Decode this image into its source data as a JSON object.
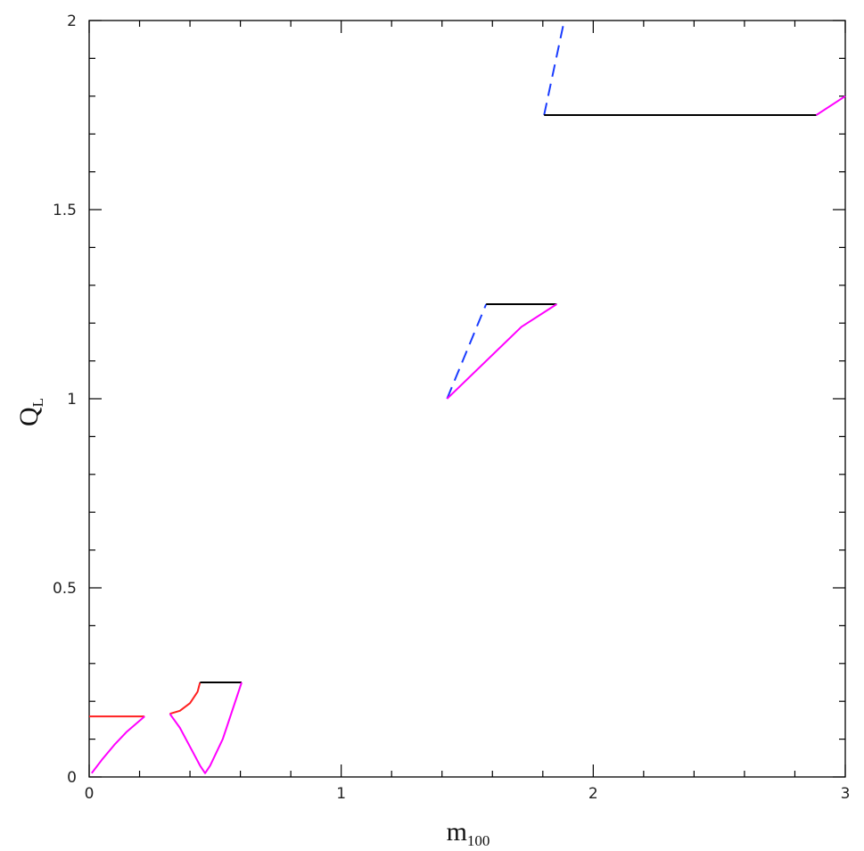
{
  "chart_data": {
    "type": "line",
    "xlabel": {
      "text": "m",
      "subscript": "100"
    },
    "ylabel": {
      "text": "Q",
      "subscript": "L"
    },
    "xlim": [
      0,
      3
    ],
    "ylim": [
      0,
      2
    ],
    "xticks": [
      0,
      1,
      2,
      3
    ],
    "yticks": [
      0,
      0.5,
      1,
      1.5,
      2
    ],
    "xminorticks": [
      0.2,
      0.4,
      0.6,
      0.8,
      1.2,
      1.4,
      1.6,
      1.8,
      2.2,
      2.4,
      2.6,
      2.8
    ],
    "yminorticks": [
      0.1,
      0.2,
      0.3,
      0.4,
      0.6,
      0.7,
      0.8,
      0.9,
      1.1,
      1.2,
      1.3,
      1.4,
      1.6,
      1.7,
      1.8,
      1.9
    ],
    "series": [
      {
        "color": "#ff2020",
        "dashed": false,
        "x": [
          0,
          0.22
        ],
        "values": [
          0.16,
          0.16
        ]
      },
      {
        "color": "#ff00ff",
        "dashed": false,
        "x": [
          0.01,
          0.05,
          0.1,
          0.15,
          0.22
        ],
        "values": [
          0.01,
          0.045,
          0.085,
          0.12,
          0.16
        ]
      },
      {
        "color": "#ff2020",
        "dashed": false,
        "x": [
          0.32,
          0.36,
          0.4,
          0.43,
          0.44
        ],
        "values": [
          0.167,
          0.175,
          0.195,
          0.225,
          0.25
        ]
      },
      {
        "color": "#000000",
        "dashed": false,
        "x": [
          0.44,
          0.605
        ],
        "values": [
          0.25,
          0.25
        ]
      },
      {
        "color": "#ff00ff",
        "dashed": false,
        "x": [
          0.32,
          0.36,
          0.4,
          0.44,
          0.46,
          0.48,
          0.53,
          0.605
        ],
        "values": [
          0.167,
          0.13,
          0.08,
          0.03,
          0.01,
          0.03,
          0.1,
          0.25
        ]
      },
      {
        "color": "#1a3cff",
        "dashed": true,
        "x": [
          1.42,
          1.575
        ],
        "values": [
          1.0,
          1.25
        ]
      },
      {
        "color": "#000000",
        "dashed": false,
        "x": [
          1.575,
          1.855
        ],
        "values": [
          1.25,
          1.25
        ]
      },
      {
        "color": "#ff00ff",
        "dashed": false,
        "x": [
          1.42,
          1.715,
          1.855
        ],
        "values": [
          1.0,
          1.19,
          1.25
        ]
      },
      {
        "color": "#1a3cff",
        "dashed": true,
        "x": [
          1.805,
          1.885
        ],
        "values": [
          1.75,
          2.0
        ]
      },
      {
        "color": "#000000",
        "dashed": false,
        "x": [
          1.805,
          2.885
        ],
        "values": [
          1.75,
          1.75
        ]
      },
      {
        "color": "#ff00ff",
        "dashed": false,
        "x": [
          2.885,
          3.0
        ],
        "values": [
          1.75,
          1.8
        ]
      }
    ]
  }
}
